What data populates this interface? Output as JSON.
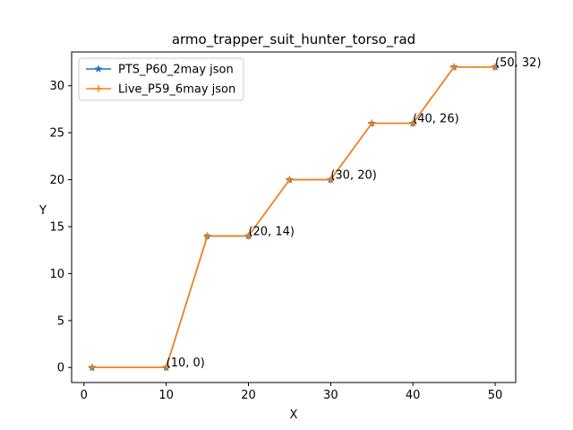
{
  "chart_data": {
    "type": "line",
    "title": "armo_trapper_suit_hunter_torso_rad",
    "xlabel": "X",
    "ylabel": "Y",
    "xlim": [
      -1.5,
      52.5
    ],
    "ylim": [
      -1.6,
      33.6
    ],
    "xticks": [
      0,
      10,
      20,
      30,
      40,
      50
    ],
    "yticks": [
      0,
      5,
      10,
      15,
      20,
      25,
      30
    ],
    "grid": false,
    "legend_position": "top-left",
    "x": [
      1,
      10,
      15,
      20,
      25,
      30,
      35,
      40,
      45,
      50
    ],
    "series": [
      {
        "name": "PTS_P60_2may json",
        "color": "#1f77b4",
        "marker": "star",
        "values": [
          0,
          0,
          14,
          14,
          20,
          20,
          26,
          26,
          32,
          32
        ]
      },
      {
        "name": "Live_P59_6may json",
        "color": "#ff7f0e",
        "marker": "plus",
        "values": [
          0,
          0,
          14,
          14,
          20,
          20,
          26,
          26,
          32,
          32
        ]
      }
    ],
    "annotations": [
      {
        "x": 10,
        "y": 0,
        "text": "(10, 0)"
      },
      {
        "x": 20,
        "y": 14,
        "text": "(20, 14)"
      },
      {
        "x": 30,
        "y": 20,
        "text": "(30, 20)"
      },
      {
        "x": 40,
        "y": 26,
        "text": "(40, 26)"
      },
      {
        "x": 50,
        "y": 32,
        "text": "(50, 32)"
      }
    ]
  }
}
